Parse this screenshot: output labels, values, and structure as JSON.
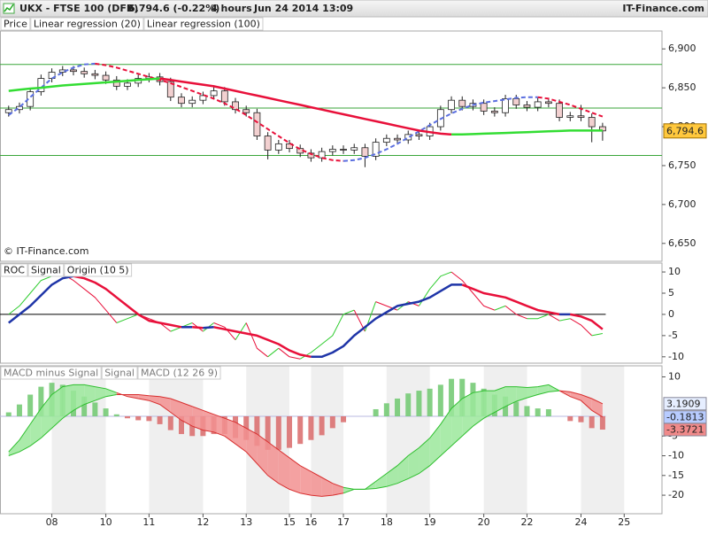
{
  "header": {
    "symbol": "UKX - FTSE 100 (DFB)",
    "quote": "6,794.6 (-0.22%)",
    "interval": "4 hours",
    "datetime": "Jun 24 2014 13:09",
    "brand": "IT-Finance.com"
  },
  "x_axis": {
    "xlim": [
      -0.8,
      60.5
    ],
    "xticks": [
      {
        "value": 4,
        "label": "08"
      },
      {
        "value": 9,
        "label": "10"
      },
      {
        "value": 13,
        "label": "11"
      },
      {
        "value": 18,
        "label": "12"
      },
      {
        "value": 22,
        "label": "13"
      },
      {
        "value": 26,
        "label": "15"
      },
      {
        "value": 28,
        "label": "16"
      },
      {
        "value": 31,
        "label": "17"
      },
      {
        "value": 35,
        "label": "18"
      },
      {
        "value": 39,
        "label": "19"
      },
      {
        "value": 44,
        "label": "20"
      },
      {
        "value": 48,
        "label": "22"
      },
      {
        "value": 53,
        "label": "24"
      },
      {
        "value": 57,
        "label": "25"
      }
    ]
  },
  "chart_data": [
    {
      "type": "candlestick",
      "legend": "Price",
      "watermark": "© IT-Finance.com",
      "open": [
        6818,
        6822,
        6826,
        6845,
        6862,
        6870,
        6873,
        6871,
        6868,
        6866,
        6860,
        6852,
        6856,
        6862,
        6864,
        6858,
        6838,
        6830,
        6834,
        6840,
        6846,
        6832,
        6822,
        6818,
        6788,
        6770,
        6778,
        6772,
        6766,
        6760,
        6768,
        6771,
        6770,
        6773,
        6762,
        6780,
        6785,
        6783,
        6790,
        6788,
        6800,
        6822,
        6834,
        6826,
        6830,
        6820,
        6818,
        6836,
        6828,
        6825,
        6832,
        6830,
        6812,
        6814,
        6812,
        6800
      ],
      "high": [
        6827,
        6831,
        6850,
        6867,
        6875,
        6878,
        6878,
        6876,
        6873,
        6871,
        6865,
        6861,
        6867,
        6869,
        6869,
        6863,
        6843,
        6839,
        6845,
        6851,
        6851,
        6837,
        6827,
        6823,
        6793,
        6783,
        6783,
        6777,
        6771,
        6773,
        6776,
        6776,
        6778,
        6778,
        6785,
        6790,
        6790,
        6795,
        6795,
        6805,
        6827,
        6839,
        6839,
        6835,
        6835,
        6825,
        6841,
        6841,
        6833,
        6837,
        6837,
        6835,
        6819,
        6828,
        6817,
        6805
      ],
      "low": [
        6813,
        6817,
        6821,
        6840,
        6857,
        6865,
        6866,
        6863,
        6861,
        6855,
        6847,
        6847,
        6851,
        6857,
        6853,
        6833,
        6825,
        6825,
        6829,
        6835,
        6827,
        6817,
        6813,
        6783,
        6758,
        6765,
        6767,
        6761,
        6755,
        6755,
        6763,
        6765,
        6765,
        6748,
        6757,
        6775,
        6778,
        6778,
        6783,
        6783,
        6795,
        6817,
        6821,
        6821,
        6815,
        6813,
        6813,
        6823,
        6820,
        6820,
        6825,
        6807,
        6807,
        6807,
        6780,
        6782
      ],
      "close": [
        6822,
        6826,
        6845,
        6862,
        6870,
        6873,
        6871,
        6868,
        6866,
        6860,
        6852,
        6856,
        6862,
        6864,
        6858,
        6838,
        6830,
        6834,
        6840,
        6846,
        6832,
        6822,
        6818,
        6788,
        6770,
        6778,
        6772,
        6766,
        6760,
        6768,
        6771,
        6770,
        6773,
        6762,
        6780,
        6785,
        6783,
        6790,
        6788,
        6800,
        6822,
        6834,
        6826,
        6830,
        6820,
        6818,
        6836,
        6828,
        6825,
        6832,
        6830,
        6812,
        6814,
        6812,
        6800,
        6794.6
      ],
      "last_label": "6,794.6",
      "last_label_color": "#ffc83d",
      "up_color": "#ffffff",
      "down_color": "#f2d0d0",
      "edge_color": "#222222",
      "series": [
        {
          "name": "Linear regression (20)",
          "dashed": true,
          "width": 2,
          "up_color": "#5b6fe0",
          "down_color": "#e8103a",
          "values": [
            6815,
            6825,
            6838,
            6850,
            6862,
            6870,
            6876,
            6880,
            6881,
            6879,
            6876,
            6872,
            6868,
            6864,
            6860,
            6856,
            6851,
            6846,
            6841,
            6836,
            6830,
            6823,
            6815,
            6806,
            6797,
            6788,
            6779,
            6771,
            6765,
            6760,
            6757,
            6756,
            6757,
            6760,
            6765,
            6771,
            6778,
            6786,
            6794,
            6802,
            6810,
            6817,
            6823,
            6828,
            6831,
            6833,
            6835,
            6837,
            6838,
            6838,
            6836,
            6832,
            6828,
            6823,
            6818,
            6813
          ]
        },
        {
          "name": "Linear regression (100)",
          "dashed": false,
          "width": 2.5,
          "up_color": "#33dd33",
          "down_color": "#e8103a",
          "values": [
            6846,
            6847.5,
            6849,
            6850,
            6851.5,
            6853,
            6854,
            6855,
            6856,
            6857,
            6858,
            6859,
            6860,
            6861,
            6862,
            6860,
            6858,
            6856,
            6854,
            6852,
            6849,
            6846,
            6843,
            6840,
            6837,
            6834,
            6831,
            6828,
            6825,
            6822,
            6819,
            6816,
            6813,
            6810,
            6807,
            6804,
            6801,
            6798,
            6795,
            6793,
            6791,
            6790,
            6790,
            6790.5,
            6791,
            6791.5,
            6792,
            6792.5,
            6793,
            6793.5,
            6794,
            6794.5,
            6795,
            6795,
            6795,
            6795
          ]
        }
      ],
      "levels": [
        6880,
        6824,
        6763
      ],
      "level_color": "#3aa63a",
      "ylim": [
        6627,
        6923
      ],
      "yticks": [
        {
          "value": 6900,
          "label": "6,900"
        },
        {
          "value": 6850,
          "label": "6,850"
        },
        {
          "value": 6800,
          "label": "6,800"
        },
        {
          "value": 6750,
          "label": "6,750"
        },
        {
          "value": 6700,
          "label": "6,700"
        },
        {
          "value": 6650,
          "label": "6,650"
        }
      ]
    },
    {
      "type": "line",
      "series": [
        {
          "name": "ROC",
          "width": 1,
          "up_color": "#2ecc2e",
          "down_color": "#e8103a",
          "values": [
            0,
            2,
            5,
            8,
            9,
            9.5,
            8,
            6,
            4,
            1,
            -2,
            -1,
            0,
            -1,
            -2,
            -4,
            -3,
            -2,
            -4,
            -2,
            -3,
            -6,
            -2,
            -8,
            -10,
            -8,
            -10,
            -10.5,
            -9,
            -7,
            -5,
            0,
            1,
            -4,
            3,
            2,
            1,
            3,
            2,
            6,
            9,
            10,
            8,
            5,
            2,
            1,
            2,
            0,
            -1,
            -1,
            0,
            -1.5,
            -1,
            -2.5,
            -5,
            -4.5
          ]
        },
        {
          "name": "Signal",
          "width": 2.5,
          "up_color": "#1f35a8",
          "down_color": "#e8103a",
          "values": [
            -2,
            0,
            2,
            4.5,
            7,
            8.5,
            9,
            8.5,
            7.5,
            6,
            4,
            2,
            0,
            -1.5,
            -2,
            -2.5,
            -3,
            -3,
            -3.2,
            -3,
            -3.5,
            -4,
            -4.5,
            -5,
            -6,
            -7,
            -8.5,
            -9.5,
            -10,
            -10,
            -9,
            -7.5,
            -5,
            -3,
            -1,
            0.5,
            2,
            2.5,
            3,
            4,
            5.5,
            7,
            7,
            6,
            5,
            4.5,
            4,
            3,
            2,
            1,
            0.5,
            0,
            0,
            -0.5,
            -1.5,
            -3.5
          ]
        }
      ],
      "origin": {
        "name": "Origin (10 5)",
        "value": 0,
        "color": "#000000"
      },
      "ylim": [
        -11.5,
        12.1
      ],
      "yticks": [
        10,
        5,
        0,
        -5,
        -10
      ]
    },
    {
      "type": "macd",
      "histogram": {
        "name": "MACD minus Signal",
        "up_color": "#6fc86f",
        "down_color": "#d96a6a",
        "box_color": "#f08a8a",
        "values": [
          1,
          3,
          5.5,
          7.5,
          8.5,
          8,
          6.5,
          5,
          3.5,
          2,
          0.5,
          -0.5,
          -1,
          -1.2,
          -2,
          -3.5,
          -4.5,
          -5,
          -5,
          -4.5,
          -4.5,
          -5.5,
          -6,
          -7.5,
          -8.5,
          -8.5,
          -8,
          -7,
          -6,
          -4.8,
          -3,
          -1.5,
          0,
          0,
          1.8,
          3.3,
          4.5,
          5.8,
          6.5,
          7,
          8,
          9.5,
          9.5,
          8.5,
          7,
          5.5,
          5,
          3.7,
          2.6,
          2,
          1.8,
          0,
          -1.2,
          -1.5,
          -3,
          -3.3721
        ]
      },
      "signal": {
        "name": "Signal",
        "box_color": "#e6eeff",
        "values": [
          -10,
          -9,
          -7.5,
          -5.5,
          -3,
          -0.5,
          1.5,
          3,
          4,
          5,
          5.5,
          5.5,
          5.5,
          5.2,
          5,
          4.5,
          3.5,
          2.5,
          1.5,
          0.5,
          -0.5,
          -1.5,
          -3,
          -4.5,
          -6.5,
          -8.5,
          -10.5,
          -12.5,
          -14,
          -15.5,
          -17,
          -18,
          -18.5,
          -18.5,
          -18.3,
          -17.8,
          -17,
          -15.8,
          -14.5,
          -12.5,
          -10,
          -7.5,
          -5,
          -2.5,
          -0.5,
          1,
          2.5,
          3.8,
          4.7,
          5.5,
          6.2,
          6.5,
          6.2,
          5.5,
          4.5,
          3.1909
        ]
      },
      "macd": {
        "name": "MACD (12 26 9)",
        "box_color": "#b8ccff",
        "values": [
          -9,
          -6,
          -2,
          2,
          5.5,
          7.5,
          8,
          8,
          7.5,
          7,
          6,
          5,
          4.5,
          4,
          3,
          1,
          -1,
          -2.5,
          -3.5,
          -4,
          -5,
          -7,
          -9,
          -12,
          -15,
          -17,
          -18.5,
          -19.5,
          -20,
          -20.3,
          -20,
          -19.5,
          -18.5,
          -18.5,
          -16.5,
          -14.5,
          -12.5,
          -10,
          -8,
          -5.5,
          -2,
          2,
          4.5,
          6,
          6.5,
          6.5,
          7.5,
          7.5,
          7.3,
          7.5,
          8,
          6.5,
          5,
          4,
          1.5,
          -0.1813
        ]
      },
      "ribbon_up": "#9be89b",
      "ribbon_down": "#f29090",
      "line_up": "#2fbf2f",
      "line_down": "#d83030",
      "ylim": [
        -24.7,
        12.8
      ],
      "yticks": [
        10,
        -5,
        -10,
        -15,
        -20
      ]
    }
  ]
}
